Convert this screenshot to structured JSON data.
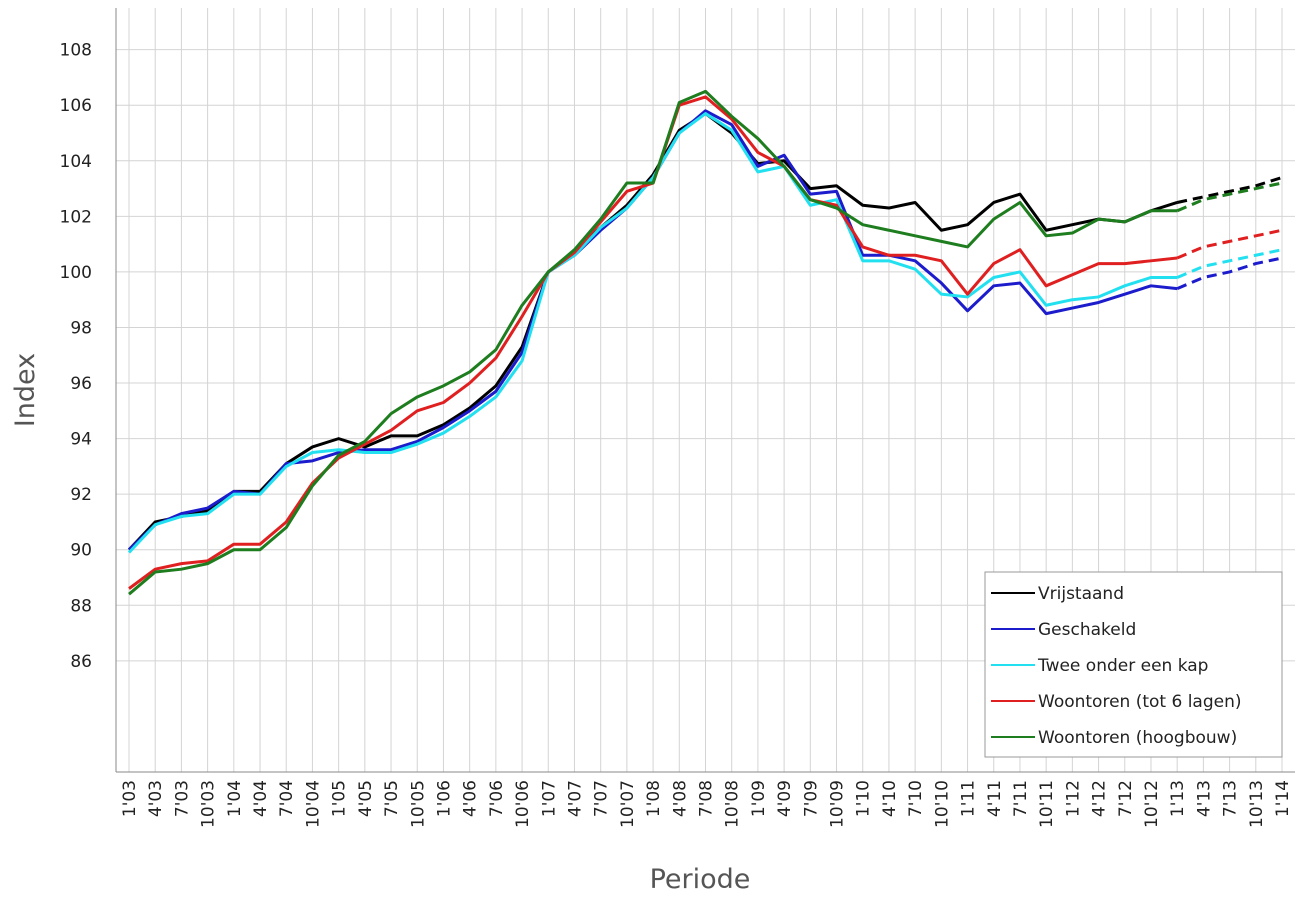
{
  "chart_data": {
    "type": "line",
    "x_label": "Periode",
    "y_label": "Index",
    "categories": [
      "1'03",
      "4'03",
      "7'03",
      "10'03",
      "1'04",
      "4'04",
      "7'04",
      "10'04",
      "1'05",
      "4'05",
      "7'05",
      "10'05",
      "1'06",
      "4'06",
      "7'06",
      "10'06",
      "1'07",
      "4'07",
      "7'07",
      "10'07",
      "1'08",
      "4'08",
      "7'08",
      "10'08",
      "1'09",
      "4'09",
      "7'09",
      "10'09",
      "1'10",
      "4'10",
      "7'10",
      "10'10",
      "1'11",
      "4'11",
      "7'11",
      "10'11",
      "1'12",
      "4'12",
      "7'12",
      "10'12",
      "1'13",
      "4'13",
      "7'13",
      "10'13",
      "1'14"
    ],
    "dashed_from": 40,
    "ylim": [
      82,
      109.5
    ],
    "yticks": [
      86,
      88,
      90,
      92,
      94,
      96,
      98,
      100,
      102,
      104,
      106,
      108
    ],
    "grid": true,
    "legend": "lower right",
    "series": [
      {
        "name": "Vrijstaand",
        "color": "#000000",
        "values": [
          90.0,
          91.0,
          91.2,
          91.4,
          92.1,
          92.1,
          93.1,
          93.7,
          94.0,
          93.7,
          94.1,
          94.1,
          94.5,
          95.1,
          95.9,
          97.3,
          100.0,
          100.7,
          101.6,
          102.4,
          103.5,
          105.1,
          105.7,
          105.0,
          103.9,
          104.0,
          103.0,
          103.1,
          102.4,
          102.3,
          102.5,
          101.5,
          101.7,
          102.5,
          102.8,
          101.5,
          101.7,
          101.9,
          101.8,
          102.2,
          102.5,
          102.7,
          102.9,
          103.1,
          103.4
        ]
      },
      {
        "name": "Geschakeld",
        "color": "#1c1ccc",
        "values": [
          90.0,
          90.9,
          91.3,
          91.5,
          92.1,
          92.0,
          93.1,
          93.2,
          93.5,
          93.6,
          93.6,
          93.9,
          94.4,
          95.0,
          95.7,
          97.1,
          100.0,
          100.6,
          101.5,
          102.3,
          103.4,
          105.0,
          105.8,
          105.3,
          103.8,
          104.2,
          102.8,
          102.9,
          100.6,
          100.6,
          100.4,
          99.6,
          98.6,
          99.5,
          99.6,
          98.5,
          98.7,
          98.9,
          99.2,
          99.5,
          99.4,
          99.8,
          100.0,
          100.3,
          100.5
        ]
      },
      {
        "name": "Twee onder een kap",
        "color": "#22e0f0",
        "values": [
          89.9,
          90.9,
          91.2,
          91.3,
          92.0,
          92.0,
          93.0,
          93.5,
          93.6,
          93.5,
          93.5,
          93.8,
          94.2,
          94.8,
          95.5,
          96.8,
          100.0,
          100.6,
          101.6,
          102.3,
          103.4,
          105.0,
          105.7,
          105.1,
          103.6,
          103.8,
          102.4,
          102.6,
          100.4,
          100.4,
          100.1,
          99.2,
          99.1,
          99.8,
          100.0,
          98.8,
          99.0,
          99.1,
          99.5,
          99.8,
          99.8,
          100.2,
          100.4,
          100.6,
          100.8
        ]
      },
      {
        "name": "Woontoren (tot 6 lagen)",
        "color": "#e02020",
        "values": [
          88.6,
          89.3,
          89.5,
          89.6,
          90.2,
          90.2,
          91.0,
          92.4,
          93.3,
          93.8,
          94.3,
          95.0,
          95.3,
          96.0,
          96.9,
          98.4,
          100.0,
          100.7,
          101.8,
          102.9,
          103.2,
          106.0,
          106.3,
          105.5,
          104.3,
          103.8,
          102.6,
          102.4,
          100.9,
          100.6,
          100.6,
          100.4,
          99.2,
          100.3,
          100.8,
          99.5,
          99.9,
          100.3,
          100.3,
          100.4,
          100.5,
          100.9,
          101.1,
          101.3,
          101.5
        ]
      },
      {
        "name": "Woontoren (hoogbouw)",
        "color": "#1e7d1e",
        "values": [
          88.4,
          89.2,
          89.3,
          89.5,
          90.0,
          90.0,
          90.8,
          92.3,
          93.4,
          93.9,
          94.9,
          95.5,
          95.9,
          96.4,
          97.2,
          98.8,
          100.0,
          100.8,
          101.9,
          103.2,
          103.2,
          106.1,
          106.5,
          105.6,
          104.8,
          103.8,
          102.6,
          102.3,
          101.7,
          101.5,
          101.3,
          101.1,
          100.9,
          101.9,
          102.5,
          101.3,
          101.4,
          101.9,
          101.8,
          102.2,
          102.2,
          102.6,
          102.8,
          103.0,
          103.2
        ]
      }
    ]
  }
}
